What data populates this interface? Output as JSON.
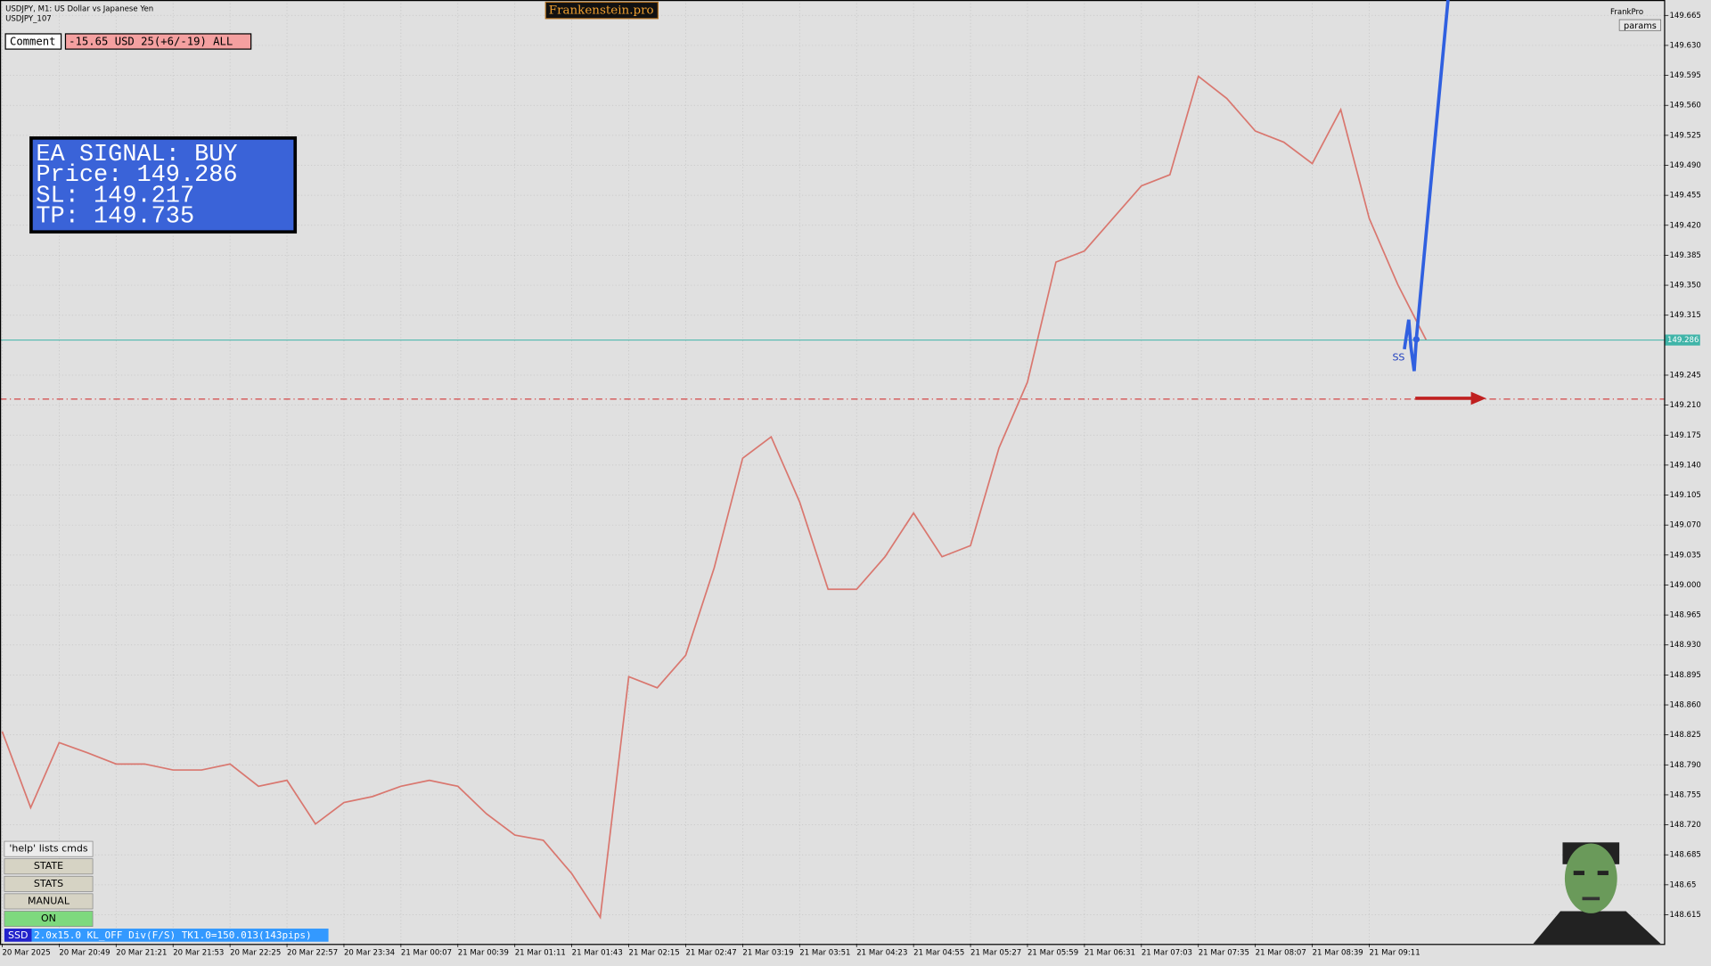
{
  "ui": {
    "symbol_title": "USDJPY, M1:  US Dollar vs Japanese Yen",
    "symbol_sub": "USDJPY_107",
    "brand": "Frankenstein.pro",
    "account": "FrankPro",
    "params": "params",
    "comment_label": "Comment",
    "comment_value": "-15.65 USD 25(+6/-19) ALL",
    "signal_lines": [
      "EA SIGNAL: BUY",
      "Price: 149.286",
      "SL:     149.217",
      "TP:     149.735"
    ],
    "buttons": [
      "'help' lists cmds",
      "STATE",
      "STATS",
      "MANUAL",
      "ON"
    ],
    "status_tag": "SSD",
    "status_text": "2.0x15.0 KL_OFF Div(F/S) TK1.0=150.013(143pips)",
    "marker_label": "SS"
  },
  "chart_data": {
    "type": "line",
    "color": "#d9776f",
    "grid": true,
    "categories": [
      "20 Mar 2025",
      null,
      "20 Mar 20:49",
      null,
      "20 Mar 21:21",
      null,
      "20 Mar 21:53",
      null,
      "20 Mar 22:25",
      null,
      "20 Mar 22:57",
      null,
      "20 Mar 23:34",
      null,
      "21 Mar 00:07",
      null,
      "21 Mar 00:39",
      null,
      "21 Mar 01:11",
      null,
      "21 Mar 01:43",
      null,
      "21 Mar 02:15",
      null,
      "21 Mar 02:47",
      null,
      "21 Mar 03:19",
      null,
      "21 Mar 03:51",
      null,
      "21 Mar 04:23",
      null,
      "21 Mar 04:55",
      null,
      "21 Mar 05:27",
      null,
      "21 Mar 05:59",
      null,
      "21 Mar 06:31",
      null,
      "21 Mar 07:03",
      null,
      "21 Mar 07:35",
      null,
      "21 Mar 08:07",
      null,
      "21 Mar 08:39",
      null,
      "21 Mar 09:11",
      null,
      null
    ],
    "values": [
      148.829,
      148.74,
      148.816,
      148.804,
      148.791,
      148.791,
      148.784,
      148.784,
      148.791,
      148.765,
      148.772,
      148.721,
      148.746,
      148.753,
      148.765,
      148.772,
      148.765,
      148.733,
      148.708,
      148.702,
      148.663,
      148.612,
      148.893,
      148.88,
      148.918,
      149.02,
      149.148,
      149.173,
      149.097,
      148.995,
      148.995,
      149.033,
      149.084,
      149.033,
      149.046,
      149.16,
      149.237,
      149.377,
      149.39,
      149.428,
      149.466,
      149.479,
      149.594,
      149.568,
      149.53,
      149.517,
      149.492,
      149.555,
      149.428,
      149.351,
      149.286
    ],
    "ylim": [
      148.581,
      149.683
    ],
    "yticks": [
      148.615,
      148.65,
      148.685,
      {
        "value": 148.72,
        "label": "148.720"
      },
      148.755,
      {
        "value": 148.79,
        "label": "148.790"
      },
      148.825,
      {
        "value": 148.86,
        "label": "148.860"
      },
      148.895,
      {
        "value": 148.93,
        "label": "148.930"
      },
      148.965,
      {
        "value": 149.0,
        "label": "149.000"
      },
      149.035,
      {
        "value": 149.07,
        "label": "149.070"
      },
      149.105,
      {
        "value": 149.14,
        "label": "149.140"
      },
      149.175,
      {
        "value": 149.21,
        "label": "149.210"
      },
      149.245,
      149.315,
      {
        "value": 149.35,
        "label": "149.350"
      },
      149.385,
      {
        "value": 149.42,
        "label": "149.420"
      },
      149.455,
      {
        "value": 149.49,
        "label": "149.490"
      },
      149.525,
      {
        "value": 149.56,
        "label": "149.560"
      },
      149.595,
      {
        "value": 149.63,
        "label": "149.630"
      },
      149.665
    ],
    "current_price": 149.286,
    "stop_loss": 149.217
  }
}
